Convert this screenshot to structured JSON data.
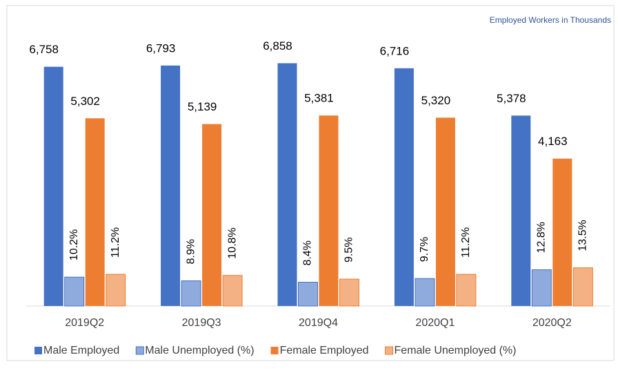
{
  "chart_data": {
    "type": "bar",
    "annotation": "Employed Workers in Thousands",
    "categories": [
      "2019Q2",
      "2019Q3",
      "2019Q4",
      "2020Q1",
      "2020Q2"
    ],
    "series": [
      {
        "name": "Male Employed",
        "color": "#4472c4",
        "values": [
          6758,
          6793,
          6858,
          6716,
          5378
        ],
        "value_labels": [
          "6,758",
          "6,793",
          "6,858",
          "6,716",
          "5,378"
        ]
      },
      {
        "name": "Male Unemployed (%)",
        "color": "#8faadc",
        "axis": "y2",
        "values": [
          10.2,
          8.9,
          8.4,
          9.7,
          12.8
        ],
        "value_labels": [
          "10.2%",
          "8.9%",
          "8.4%",
          "9.7%",
          "12.8%"
        ]
      },
      {
        "name": "Female Employed",
        "color": "#ed7d31",
        "values": [
          5302,
          5139,
          5381,
          5320,
          4163
        ],
        "value_labels": [
          "5,302",
          "5,139",
          "5,381",
          "5,320",
          "4,163"
        ]
      },
      {
        "name": "Female Unemployed (%)",
        "color": "#f4b183",
        "axis": "y2",
        "values": [
          11.2,
          10.8,
          9.5,
          11.2,
          13.5
        ],
        "value_labels": [
          "11.2%",
          "10.8%",
          "9.5%",
          "11.2%",
          "13.5%"
        ]
      }
    ],
    "ylim": [
      0,
      8000
    ],
    "y2lim": [
      0,
      100
    ],
    "grid": false,
    "legend": "bottom"
  }
}
